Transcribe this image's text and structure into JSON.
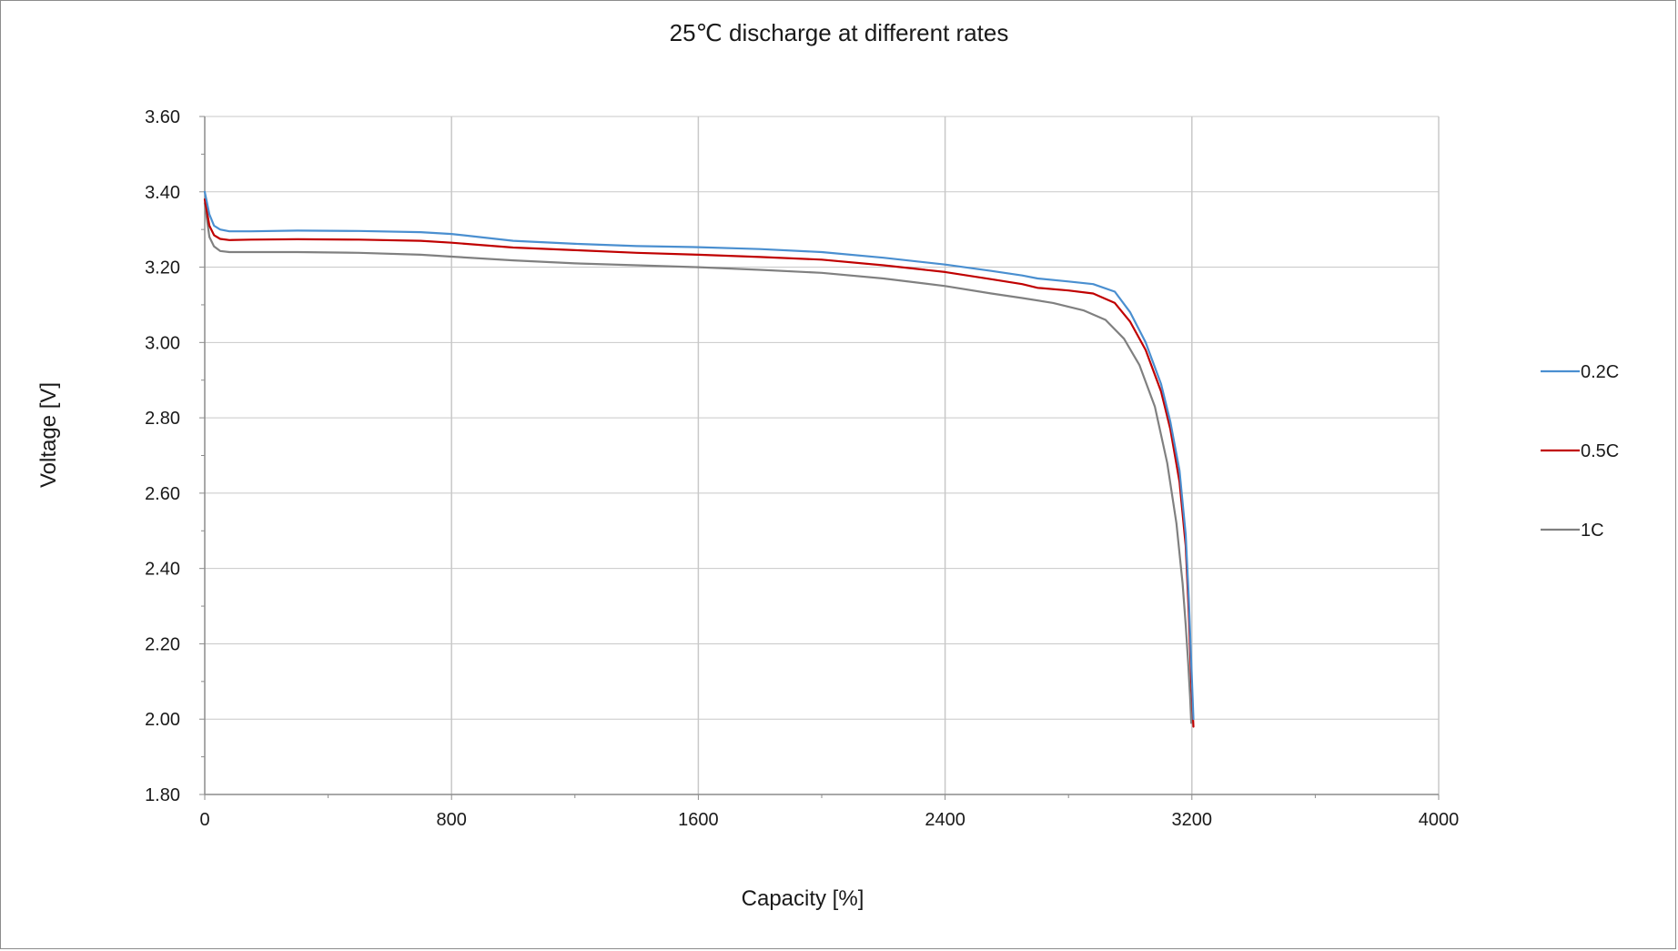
{
  "chart_data": {
    "type": "line",
    "title": "25℃ discharge at different rates",
    "xlabel": "Capacity [%]",
    "ylabel": "Voltage [V]",
    "xlim": [
      0,
      4000
    ],
    "ylim": [
      1.8,
      3.6
    ],
    "x_ticks": [
      "0",
      "800",
      "1600",
      "2400",
      "3200",
      "4000"
    ],
    "y_ticks": [
      "1.80",
      "2.00",
      "2.20",
      "2.40",
      "2.60",
      "2.80",
      "3.00",
      "3.20",
      "3.40",
      "3.60"
    ],
    "x_tick_values": [
      0,
      800,
      1600,
      2400,
      3200,
      4000
    ],
    "y_tick_values": [
      1.8,
      2.0,
      2.2,
      2.4,
      2.6,
      2.8,
      3.0,
      3.2,
      3.4,
      3.6
    ],
    "grid": true,
    "legend_position": "right",
    "series": [
      {
        "name": "0.2C",
        "color": "#4a8fd0",
        "x": [
          0,
          15,
          30,
          50,
          80,
          150,
          300,
          500,
          700,
          800,
          1000,
          1200,
          1400,
          1600,
          1800,
          2000,
          2200,
          2400,
          2550,
          2650,
          2700,
          2800,
          2880,
          2950,
          3000,
          3050,
          3100,
          3130,
          3160,
          3180,
          3190,
          3198,
          3205
        ],
        "y": [
          3.4,
          3.34,
          3.31,
          3.3,
          3.295,
          3.295,
          3.297,
          3.296,
          3.293,
          3.288,
          3.27,
          3.262,
          3.256,
          3.253,
          3.248,
          3.24,
          3.225,
          3.207,
          3.19,
          3.178,
          3.17,
          3.162,
          3.155,
          3.135,
          3.08,
          3.0,
          2.89,
          2.79,
          2.66,
          2.49,
          2.32,
          2.15,
          2.0
        ]
      },
      {
        "name": "0.5C",
        "color": "#c00000",
        "x": [
          0,
          15,
          30,
          50,
          80,
          150,
          300,
          500,
          700,
          800,
          1000,
          1200,
          1400,
          1600,
          1800,
          2000,
          2200,
          2400,
          2550,
          2650,
          2700,
          2800,
          2880,
          2950,
          3000,
          3050,
          3100,
          3130,
          3160,
          3180,
          3190,
          3198,
          3205
        ],
        "y": [
          3.38,
          3.31,
          3.285,
          3.275,
          3.272,
          3.273,
          3.274,
          3.273,
          3.27,
          3.265,
          3.252,
          3.245,
          3.238,
          3.233,
          3.227,
          3.22,
          3.205,
          3.187,
          3.168,
          3.155,
          3.145,
          3.138,
          3.13,
          3.105,
          3.055,
          2.98,
          2.87,
          2.77,
          2.63,
          2.46,
          2.28,
          2.1,
          1.98
        ]
      },
      {
        "name": "1C",
        "color": "#808080",
        "x": [
          0,
          15,
          30,
          50,
          80,
          150,
          300,
          500,
          700,
          800,
          1000,
          1200,
          1400,
          1600,
          1800,
          2000,
          2200,
          2400,
          2550,
          2650,
          2750,
          2850,
          2920,
          2980,
          3030,
          3080,
          3120,
          3150,
          3170,
          3180,
          3188,
          3194,
          3198
        ],
        "y": [
          3.37,
          3.28,
          3.255,
          3.243,
          3.24,
          3.24,
          3.24,
          3.238,
          3.233,
          3.228,
          3.218,
          3.21,
          3.205,
          3.2,
          3.193,
          3.185,
          3.17,
          3.15,
          3.13,
          3.118,
          3.105,
          3.085,
          3.06,
          3.01,
          2.94,
          2.83,
          2.68,
          2.52,
          2.36,
          2.25,
          2.15,
          2.06,
          1.99
        ]
      }
    ]
  }
}
